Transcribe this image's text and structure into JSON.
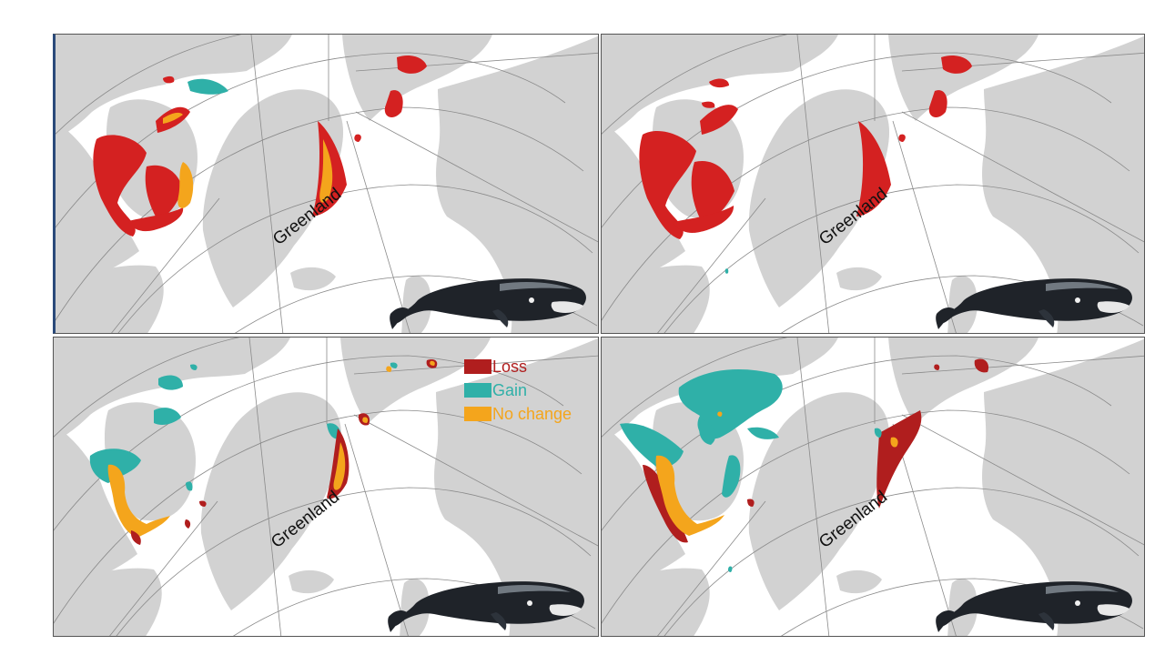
{
  "colors": {
    "loss": "#b01e1e",
    "loss_bright": "#d42121",
    "gain": "#2fb0a8",
    "no_change": "#f4a51c",
    "land": "#d2d2d2",
    "ocean": "#ffffff",
    "grid": "#8a8a8a"
  },
  "panels": [
    {
      "id": "top-left",
      "place_label": "Greenland",
      "whale_icon": "bowhead-whale-illustration"
    },
    {
      "id": "top-right",
      "place_label": "Greenland",
      "whale_icon": "bowhead-whale-illustration"
    },
    {
      "id": "bottom-left",
      "place_label": "Greenland",
      "whale_icon": "bowhead-whale-illustration"
    },
    {
      "id": "bottom-right",
      "place_label": "Greenland",
      "whale_icon": "bowhead-whale-illustration"
    }
  ],
  "legend": {
    "items": [
      {
        "label": "Loss",
        "color": "#b01e1e"
      },
      {
        "label": "Gain",
        "color": "#2fb0a8"
      },
      {
        "label": "No change",
        "color": "#f4a51c"
      }
    ]
  }
}
